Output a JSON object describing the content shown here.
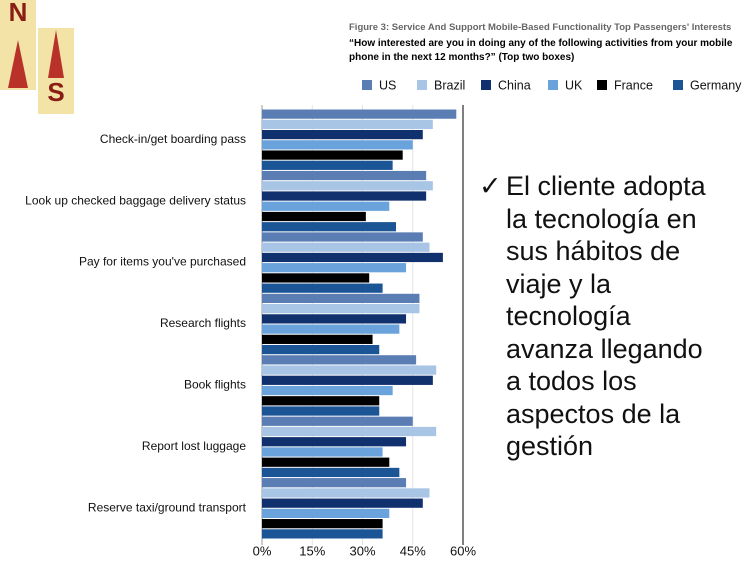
{
  "logo": {
    "letters": [
      "N",
      "S"
    ]
  },
  "chart_data": {
    "type": "barh",
    "title": "Figure 3: Service And Support Mobile-Based Functionality Top Passengers' Interests",
    "subtitle": "“How interested are you in doing any of the following activities from your mobile phone in the next 12 months?” (Top two boxes)",
    "categories": [
      "Check-in/get boarding pass",
      "Look up checked baggage delivery status",
      "Pay for items you've purchased",
      "Research flights",
      "Book flights",
      "Report lost luggage",
      "Reserve taxi/ground transport"
    ],
    "series": [
      {
        "name": "US",
        "color": "#5a7db3",
        "values": [
          58,
          49,
          48,
          47,
          46,
          45,
          43
        ]
      },
      {
        "name": "Brazil",
        "color": "#a9c5e6",
        "values": [
          51,
          51,
          50,
          47,
          52,
          52,
          50
        ]
      },
      {
        "name": "China",
        "color": "#11306e",
        "values": [
          48,
          49,
          54,
          43,
          51,
          43,
          48
        ]
      },
      {
        "name": "UK",
        "color": "#6aa3dc",
        "values": [
          45,
          38,
          43,
          41,
          39,
          36,
          38
        ]
      },
      {
        "name": "France",
        "color": "#000000",
        "values": [
          42,
          31,
          32,
          33,
          35,
          38,
          36
        ]
      },
      {
        "name": "Germany",
        "color": "#1c5596",
        "values": [
          39,
          40,
          36,
          35,
          35,
          41,
          36
        ]
      }
    ],
    "xlim": [
      0,
      60
    ],
    "xticks": [
      {
        "value": 0,
        "label": "0%"
      },
      {
        "value": 15,
        "label": "15%"
      },
      {
        "value": 30,
        "label": "30%"
      },
      {
        "value": 45,
        "label": "45%"
      },
      {
        "value": 60,
        "label": "60%"
      }
    ],
    "grid": true
  },
  "bullet": {
    "mark": "✓",
    "lines": [
      "El cliente adopta",
      "la tecnología en",
      "sus hábitos de",
      "viaje y la",
      "tecnología",
      "avanza llegando",
      "a todos los",
      "aspectos de la",
      "gestión"
    ]
  }
}
